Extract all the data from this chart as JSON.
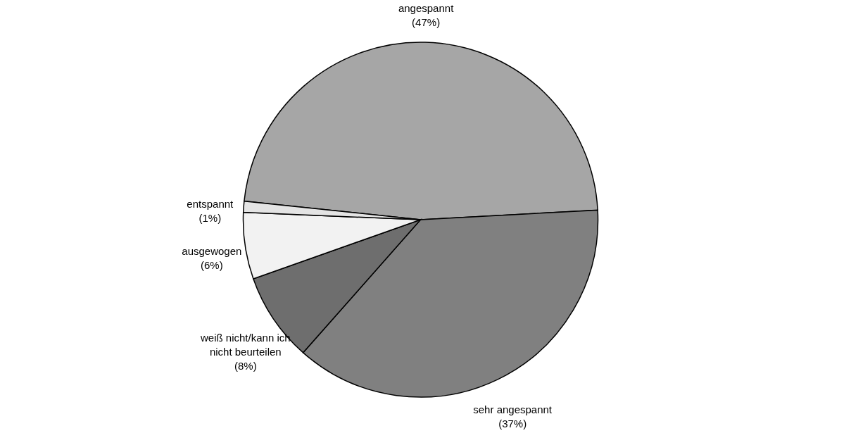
{
  "chart_data": {
    "type": "pie",
    "categories": [
      "angespannt",
      "sehr angespannt",
      "weiß nicht/kann ich nicht beurteilen",
      "ausgewogen",
      "entspannt"
    ],
    "values": [
      47,
      37,
      8,
      6,
      1
    ],
    "value_labels": [
      "(47%)",
      "(37%)",
      "(8%)",
      "(6%)",
      "(1%)"
    ],
    "colors": [
      "#a6a6a6",
      "#808080",
      "#6e6e6e",
      "#f2f2f2",
      "#e4e4e4"
    ],
    "legend": false
  }
}
